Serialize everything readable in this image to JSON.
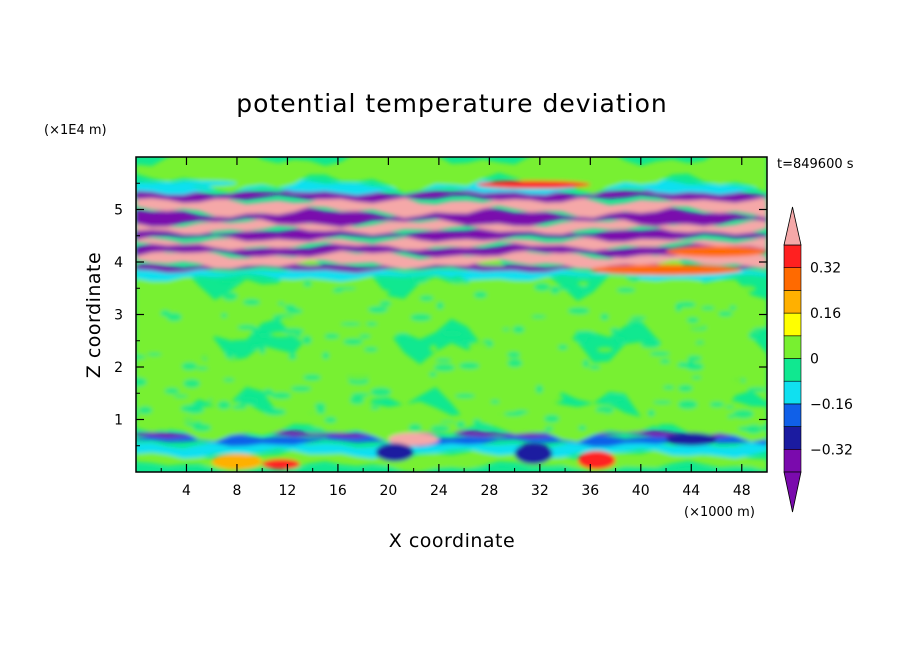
{
  "chart_data": {
    "type": "heatmap",
    "title": "potential temperature deviation",
    "xlabel": "X coordinate",
    "ylabel": "Z coordinate",
    "x_unit": "(×1000 m)",
    "y_unit": "(×1E4 m)",
    "time_label": "t=849600 s",
    "xlim": [
      0,
      50
    ],
    "ylim": [
      0,
      6
    ],
    "x_ticks": [
      4,
      8,
      12,
      16,
      20,
      24,
      28,
      32,
      36,
      40,
      44,
      48
    ],
    "y_ticks": [
      1,
      2,
      3,
      4,
      5
    ],
    "colorbar": {
      "levels": [
        -0.4,
        -0.32,
        -0.24,
        -0.16,
        -0.08,
        0,
        0.08,
        0.16,
        0.24,
        0.32,
        0.4
      ],
      "labeled_values": [
        "0.32",
        "0.16",
        "0",
        "-0.16",
        "-0.32"
      ],
      "label_texts": [
        "0.32",
        "0.16",
        "0",
        "−0.16",
        "−0.32"
      ],
      "colors": [
        "#7a0aad",
        "#1b1ba0",
        "#1060e8",
        "#10e0f0",
        "#10e890",
        "#78f030",
        "#ffff00",
        "#ffb000",
        "#ff6a00",
        "#ff2020"
      ],
      "under_color": "#7a0aad",
      "over_color": "#f5a8a8"
    },
    "bands": [
      {
        "z": [
          0.0,
          0.1
        ],
        "value": -0.05
      },
      {
        "z": [
          0.1,
          0.35
        ],
        "value": 0.05
      },
      {
        "z": [
          0.35,
          0.55
        ],
        "value": -0.1
      },
      {
        "z": [
          0.55,
          0.7
        ],
        "value": -0.2
      },
      {
        "z": [
          0.7,
          0.75
        ],
        "value": -0.35
      },
      {
        "z": [
          0.75,
          1.2
        ],
        "value": 0.02
      },
      {
        "z": [
          1.2,
          2.5
        ],
        "value": 0.03
      },
      {
        "z": [
          2.5,
          3.7
        ],
        "value": 0.01
      },
      {
        "z": [
          3.7,
          3.85
        ],
        "value": -0.12
      },
      {
        "z": [
          3.85,
          3.95
        ],
        "value": -0.45
      },
      {
        "z": [
          3.95,
          4.15
        ],
        "value": 0.45
      },
      {
        "z": [
          4.15,
          4.3
        ],
        "value": -0.45
      },
      {
        "z": [
          4.3,
          4.45
        ],
        "value": 0.45
      },
      {
        "z": [
          4.45,
          4.6
        ],
        "value": -0.45
      },
      {
        "z": [
          4.6,
          4.75
        ],
        "value": 0.45
      },
      {
        "z": [
          4.75,
          4.95
        ],
        "value": -0.45
      },
      {
        "z": [
          4.95,
          5.2
        ],
        "value": 0.45
      },
      {
        "z": [
          5.2,
          5.35
        ],
        "value": -0.45
      },
      {
        "z": [
          5.35,
          5.5
        ],
        "value": -0.1
      },
      {
        "z": [
          5.5,
          6.0
        ],
        "value": 0.06
      }
    ],
    "features": [
      {
        "x": [
          20,
          24
        ],
        "z": [
          0.5,
          0.75
        ],
        "value": 0.45
      },
      {
        "x": [
          19,
          22
        ],
        "z": [
          0.2,
          0.55
        ],
        "value": -0.25
      },
      {
        "x": [
          6,
          10
        ],
        "z": [
          0.05,
          0.35
        ],
        "value": 0.2
      },
      {
        "x": [
          10,
          13
        ],
        "z": [
          0.05,
          0.25
        ],
        "value": 0.35
      },
      {
        "x": [
          35,
          38
        ],
        "z": [
          0.05,
          0.4
        ],
        "value": 0.35
      },
      {
        "x": [
          30,
          33
        ],
        "z": [
          0.15,
          0.55
        ],
        "value": -0.3
      },
      {
        "x": [
          42,
          46
        ],
        "z": [
          0.5,
          0.75
        ],
        "value": -0.3
      },
      {
        "x": [
          36,
          48
        ],
        "z": [
          3.75,
          3.95
        ],
        "value": 0.3
      },
      {
        "x": [
          27,
          36
        ],
        "z": [
          5.4,
          5.55
        ],
        "value": 0.35
      },
      {
        "x": [
          3,
          8
        ],
        "z": [
          5.45,
          5.55
        ],
        "value": -0.1
      },
      {
        "x": [
          42,
          50
        ],
        "z": [
          4.1,
          4.3
        ],
        "value": 0.25
      }
    ]
  }
}
